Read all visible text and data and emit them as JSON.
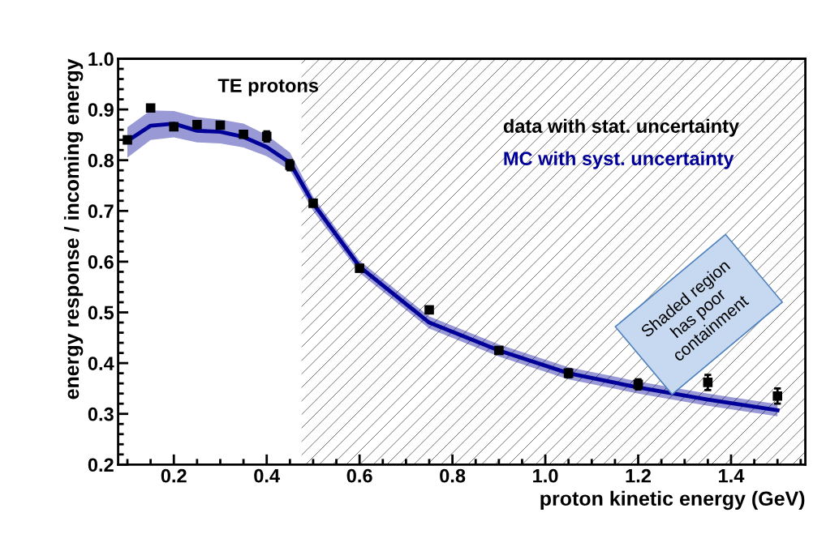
{
  "chart_data": {
    "type": "scatter",
    "xlabel": "proton kinetic energy (GeV)",
    "ylabel": "energy response / incoming energy",
    "xlim": [
      0.08,
      1.56
    ],
    "xticks": [
      {
        "value": 0.2,
        "label": "0.2"
      },
      {
        "value": 0.4,
        "label": "0.4"
      },
      {
        "value": 0.6,
        "label": "0.6"
      },
      {
        "value": 0.8,
        "label": "0.8"
      },
      {
        "value": 1.0,
        "label": "1.0"
      },
      {
        "value": 1.2,
        "label": "1.2"
      },
      {
        "value": 1.4,
        "label": "1.4"
      }
    ],
    "ylim": [
      0.2,
      1.0
    ],
    "yticks": [
      {
        "value": 0.2,
        "label": "0.2"
      },
      {
        "value": 0.3,
        "label": "0.3"
      },
      {
        "value": 0.4,
        "label": "0.4"
      },
      {
        "value": 0.5,
        "label": "0.5"
      },
      {
        "value": 0.6,
        "label": "0.6"
      },
      {
        "value": 0.7,
        "label": "0.7"
      },
      {
        "value": 0.8,
        "label": "0.8"
      },
      {
        "value": 0.9,
        "label": "0.9"
      },
      {
        "value": 1.0,
        "label": "1.0"
      }
    ],
    "grid": false,
    "legend": false,
    "x": [
      0.1,
      0.15,
      0.2,
      0.25,
      0.3,
      0.35,
      0.4,
      0.45,
      0.5,
      0.6,
      0.75,
      0.9,
      1.05,
      1.2,
      1.35,
      1.5
    ],
    "series": [
      {
        "name": "MC with syst. uncertainty",
        "type": "line",
        "color": "#000099",
        "marker": "none",
        "line_style": "solid",
        "values": [
          0.838,
          0.868,
          0.872,
          0.858,
          0.856,
          0.846,
          0.826,
          0.795,
          0.715,
          0.59,
          0.48,
          0.425,
          0.38,
          0.352,
          0.328,
          0.307
        ],
        "lower": [
          0.805,
          0.84,
          0.845,
          0.835,
          0.833,
          0.825,
          0.808,
          0.78,
          0.7,
          0.578,
          0.468,
          0.413,
          0.368,
          0.34,
          0.316,
          0.295
        ],
        "upper": [
          0.865,
          0.898,
          0.897,
          0.885,
          0.88,
          0.872,
          0.85,
          0.815,
          0.728,
          0.602,
          0.492,
          0.437,
          0.392,
          0.364,
          0.34,
          0.319
        ]
      },
      {
        "name": "data with stat. uncertainty",
        "color": "#000000",
        "marker": "square",
        "values": [
          0.84,
          0.903,
          0.866,
          0.87,
          0.869,
          0.851,
          0.847,
          0.79,
          0.715,
          0.587,
          0.505,
          0.425,
          0.38,
          0.358,
          0.362,
          0.335
        ],
        "errors": [
          null,
          null,
          null,
          null,
          null,
          null,
          0.01,
          0.01,
          null,
          null,
          null,
          null,
          0.008,
          0.01,
          0.015,
          0.015
        ]
      }
    ],
    "bands": [
      {
        "axis": "x",
        "from": 0.475,
        "to": 1.56,
        "label": null
      }
    ],
    "annotations": [
      "TE protons",
      "Shaded region has poor containment"
    ]
  }
}
